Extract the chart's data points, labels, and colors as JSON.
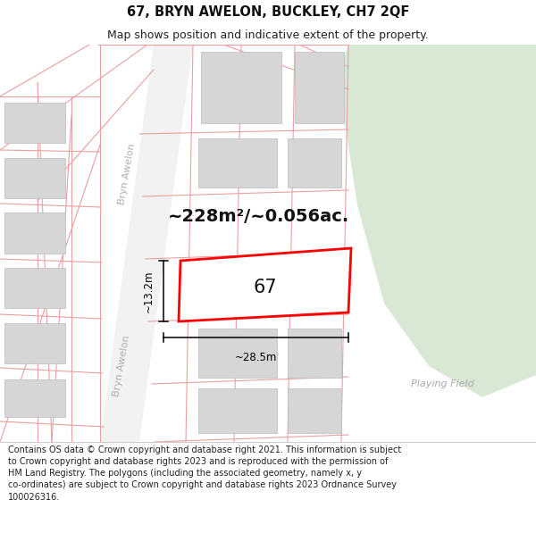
{
  "title": "67, BRYN AWELON, BUCKLEY, CH7 2QF",
  "subtitle": "Map shows position and indicative extent of the property.",
  "area_label": "~228m²/~0.056ac.",
  "property_number": "67",
  "width_label": "~28.5m",
  "height_label": "~13.2m",
  "playing_field_label": "Playing Field",
  "street_label_upper": "Bryn Awelon",
  "street_label_lower": "Bryn Awelon",
  "footer_line1": "Contains OS data © Crown copyright and database right 2021. This information is subject",
  "footer_line2": "to Crown copyright and database rights 2023 and is reproduced with the permission of",
  "footer_line3": "HM Land Registry. The polygons (including the associated geometry, namely x, y",
  "footer_line4": "co-ordinates) are subject to Crown copyright and database rights 2023 Ordnance Survey",
  "footer_line5": "100026316.",
  "bg_color": "#ffffff",
  "green_color": "#d9e8d5",
  "plot_line_color": "#e8a0a0",
  "road_fill": "#f2f2f2",
  "building_fill": "#d6d6d6",
  "building_edge": "#bbbbbb",
  "subject_color": "#ff0000",
  "subject_fill": "#ffffff",
  "dim_color": "#000000",
  "street_color": "#b0b0b0",
  "pf_color": "#aaaaaa",
  "title_fontsize": 10.5,
  "subtitle_fontsize": 9,
  "area_fontsize": 14,
  "num_fontsize": 15,
  "dim_fontsize": 8.5,
  "street_fontsize": 8,
  "footer_fontsize": 7
}
